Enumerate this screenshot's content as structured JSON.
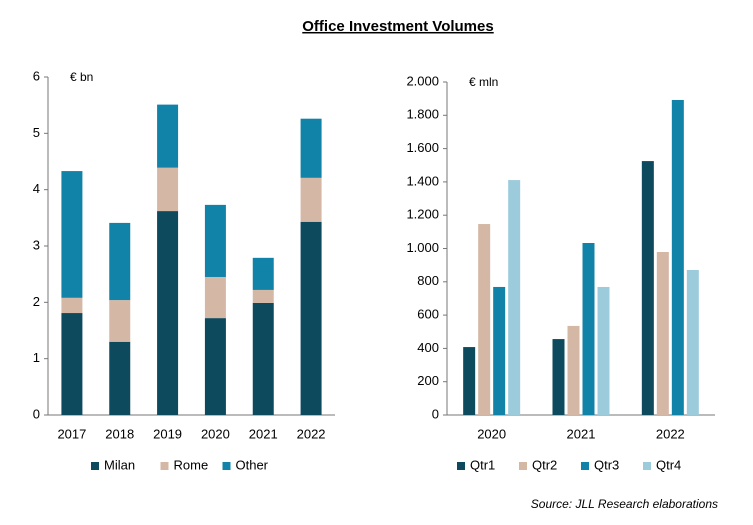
{
  "title": "Office Investment Volumes",
  "source": "Source: JLL Research elaborations",
  "chart_data": [
    {
      "type": "bar",
      "stacked": true,
      "y_label": "€ bn",
      "categories": [
        "2017",
        "2018",
        "2019",
        "2020",
        "2021",
        "2022"
      ],
      "series": [
        {
          "name": "Milan",
          "color": "#0d4a5e",
          "values": [
            1.81,
            1.3,
            3.62,
            1.72,
            1.99,
            3.43
          ]
        },
        {
          "name": "Rome",
          "color": "#d4b8a5",
          "values": [
            0.27,
            0.74,
            0.77,
            0.73,
            0.23,
            0.78
          ]
        },
        {
          "name": "Other",
          "color": "#1283a8",
          "values": [
            2.25,
            1.37,
            1.12,
            1.28,
            0.57,
            1.05
          ]
        }
      ],
      "ylim": [
        0,
        6
      ],
      "yticks": [
        0,
        1,
        2,
        3,
        4,
        5,
        6
      ],
      "grid": false
    },
    {
      "type": "bar",
      "stacked": false,
      "y_label": "€ mln",
      "categories": [
        "2020",
        "2021",
        "2022"
      ],
      "series": [
        {
          "name": "Qtr1",
          "color": "#0d4a5e",
          "values": [
            408,
            456,
            1525
          ]
        },
        {
          "name": "Qtr2",
          "color": "#d4b8a5",
          "values": [
            1147,
            535,
            979
          ]
        },
        {
          "name": "Qtr3",
          "color": "#1283a8",
          "values": [
            769,
            1033,
            1892
          ]
        },
        {
          "name": "Qtr4",
          "color": "#9ccbdc",
          "values": [
            1411,
            769,
            871
          ]
        }
      ],
      "ylim": [
        0,
        2000
      ],
      "yticks": [
        0,
        {
          "value": 200,
          "label": "200"
        },
        {
          "value": 400,
          "label": "400"
        },
        {
          "value": 600,
          "label": "600"
        },
        {
          "value": 800,
          "label": "800"
        },
        {
          "value": 1000,
          "label": "1.000"
        },
        {
          "value": 1200,
          "label": "1.200"
        },
        {
          "value": 1400,
          "label": "1.400"
        },
        {
          "value": 1600,
          "label": "1.600"
        },
        {
          "value": 1800,
          "label": "1.800"
        },
        {
          "value": 2000,
          "label": "2.000"
        }
      ],
      "grid": false
    }
  ]
}
